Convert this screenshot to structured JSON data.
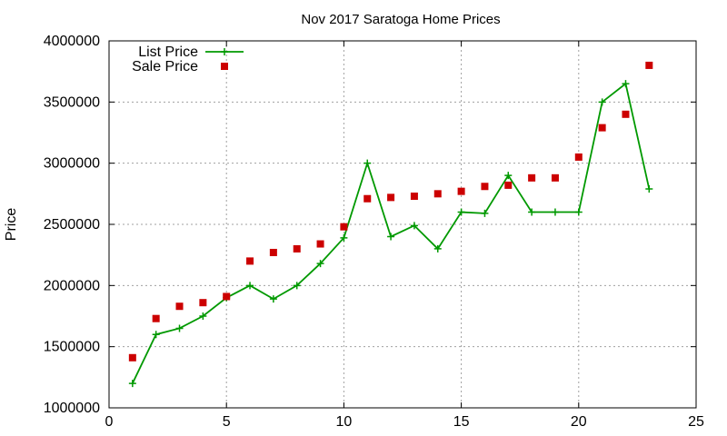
{
  "chart_data": {
    "type": "line",
    "title": "Nov 2017 Saratoga Home Prices",
    "xlabel": "",
    "ylabel": "Price",
    "xlim": [
      0,
      25
    ],
    "ylim": [
      1000000,
      4000000
    ],
    "x_ticks": [
      "0",
      "5",
      "10",
      "15",
      "20",
      "25"
    ],
    "y_ticks": [
      "1000000",
      "1500000",
      "2000000",
      "2500000",
      "3000000",
      "3500000",
      "4000000"
    ],
    "grid": true,
    "legend_position": "top-left",
    "series": [
      {
        "name": "List Price",
        "style": "line-with-plus-markers",
        "color": "#009900",
        "x": [
          1,
          2,
          3,
          4,
          5,
          6,
          7,
          8,
          9,
          10,
          11,
          12,
          13,
          14,
          15,
          16,
          17,
          18,
          19,
          20,
          21,
          22,
          23
        ],
        "y": [
          1200000,
          1600000,
          1650000,
          1750000,
          1900000,
          2000000,
          1890000,
          2000000,
          2180000,
          2390000,
          3000000,
          2400000,
          2490000,
          2300000,
          2600000,
          2590000,
          2900000,
          2600000,
          2600000,
          2600000,
          3500000,
          3650000,
          2790000
        ]
      },
      {
        "name": "Sale Price",
        "style": "square-markers",
        "color": "#cc0000",
        "x": [
          1,
          2,
          3,
          4,
          5,
          6,
          7,
          8,
          9,
          10,
          11,
          12,
          13,
          14,
          15,
          16,
          17,
          18,
          19,
          20,
          21,
          22,
          23
        ],
        "y": [
          1410000,
          1730000,
          1830000,
          1860000,
          1910000,
          2200000,
          2270000,
          2300000,
          2340000,
          2480000,
          2710000,
          2720000,
          2730000,
          2750000,
          2770000,
          2810000,
          2820000,
          2880000,
          2880000,
          3050000,
          3290000,
          3400000,
          3800000
        ]
      }
    ]
  }
}
